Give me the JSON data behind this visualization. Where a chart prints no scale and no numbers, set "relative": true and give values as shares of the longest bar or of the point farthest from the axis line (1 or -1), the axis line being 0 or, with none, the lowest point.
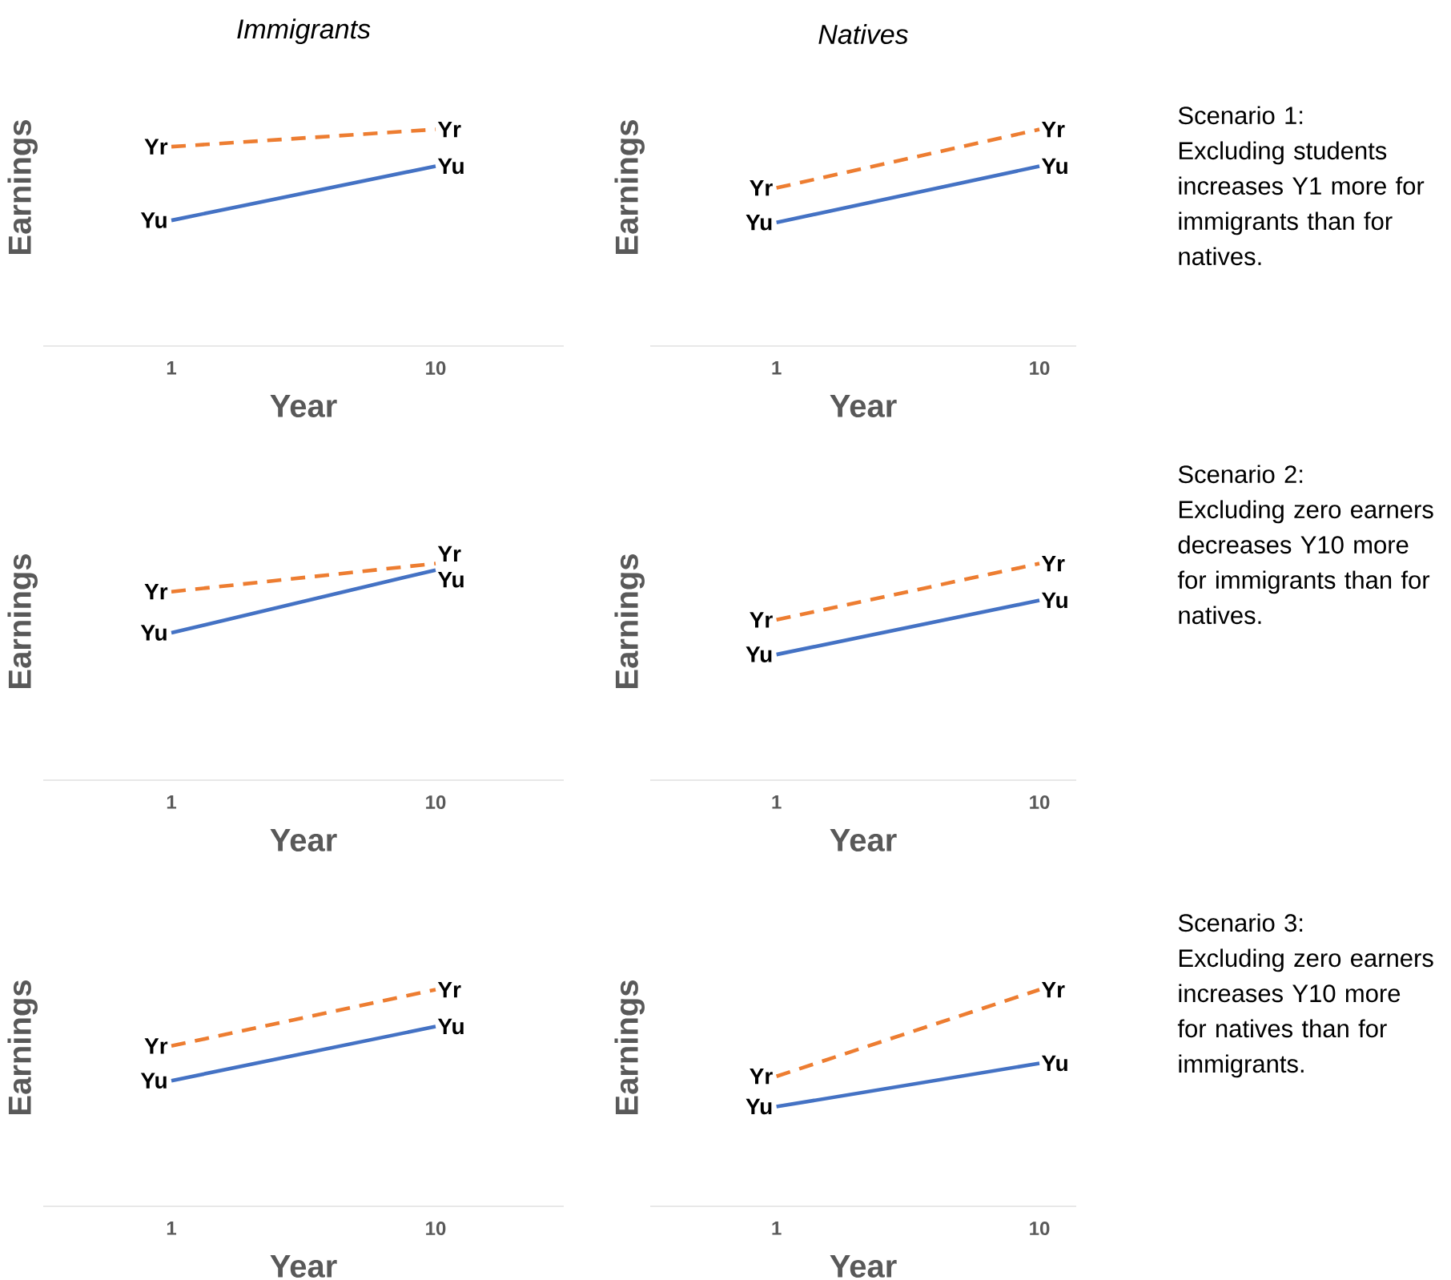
{
  "chart_data": [
    {
      "type": "line",
      "title": "Immigrants",
      "categories": [
        "1",
        "10"
      ],
      "xlabel": "Year",
      "ylabel": "Earnings",
      "relative": true,
      "series": [
        {
          "name": "Yr",
          "color": "#ed7d31",
          "line_style": "dashed",
          "values": [
            0.92,
            1
          ]
        },
        {
          "name": "Yu",
          "color": "#4472c4",
          "line_style": "solid",
          "values": [
            0.58,
            0.83
          ]
        }
      ]
    },
    {
      "type": "line",
      "title": "Natives",
      "categories": [
        "1",
        "10"
      ],
      "xlabel": "Year",
      "ylabel": "Earnings",
      "relative": true,
      "annotations": [
        "Scenario 1:",
        "Excluding students increases Y1 more for immigrants than for natives."
      ],
      "series": [
        {
          "name": "Yr",
          "color": "#ed7d31",
          "line_style": "dashed",
          "values": [
            0.73,
            1
          ]
        },
        {
          "name": "Yu",
          "color": "#4472c4",
          "line_style": "solid",
          "values": [
            0.57,
            0.83
          ]
        }
      ]
    },
    {
      "type": "line",
      "categories": [
        "1",
        "10"
      ],
      "xlabel": "Year",
      "ylabel": "Earnings",
      "relative": true,
      "series": [
        {
          "name": "Yr",
          "color": "#ed7d31",
          "line_style": "dashed",
          "values": [
            0.87,
            1
          ]
        },
        {
          "name": "Yu",
          "color": "#4472c4",
          "line_style": "solid",
          "values": [
            0.68,
            0.97
          ]
        }
      ]
    },
    {
      "type": "line",
      "categories": [
        "1",
        "10"
      ],
      "xlabel": "Year",
      "ylabel": "Earnings",
      "relative": true,
      "annotations": [
        "Scenario 2:",
        "Excluding zero earners decreases Y10 more for immigrants than for natives."
      ],
      "series": [
        {
          "name": "Yr",
          "color": "#ed7d31",
          "line_style": "dashed",
          "values": [
            0.74,
            1
          ]
        },
        {
          "name": "Yu",
          "color": "#4472c4",
          "line_style": "solid",
          "values": [
            0.58,
            0.83
          ]
        }
      ]
    },
    {
      "type": "line",
      "categories": [
        "1",
        "10"
      ],
      "xlabel": "Year",
      "ylabel": "Earnings",
      "relative": true,
      "series": [
        {
          "name": "Yr",
          "color": "#ed7d31",
          "line_style": "dashed",
          "values": [
            0.74,
            1
          ]
        },
        {
          "name": "Yu",
          "color": "#4472c4",
          "line_style": "solid",
          "values": [
            0.58,
            0.83
          ]
        }
      ]
    },
    {
      "type": "line",
      "categories": [
        "1",
        "10"
      ],
      "xlabel": "Year",
      "ylabel": "Earnings",
      "relative": true,
      "annotations": [
        "Scenario 3:",
        "Excluding zero earners increases Y10 more for natives than for immigrants."
      ],
      "series": [
        {
          "name": "Yr",
          "color": "#ed7d31",
          "line_style": "dashed",
          "values": [
            0.6,
            1
          ]
        },
        {
          "name": "Yu",
          "color": "#4472c4",
          "line_style": "solid",
          "values": [
            0.46,
            0.66
          ]
        }
      ]
    }
  ]
}
